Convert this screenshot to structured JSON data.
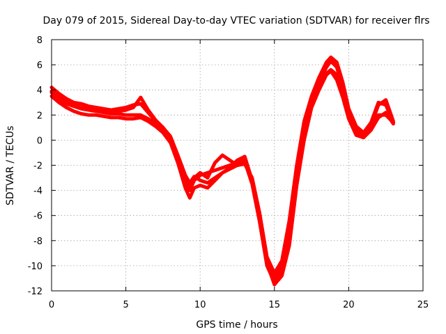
{
  "chart_data": {
    "type": "line",
    "title": "Day 079 of 2015, Sidereal Day-to-day VTEC variation (SDTVAR) for receiver flrs",
    "xlabel": "GPS time / hours",
    "ylabel": "SDTVAR / TECUs",
    "xlim": [
      0,
      25
    ],
    "ylim": [
      -12,
      8
    ],
    "xticks": [
      0,
      5,
      10,
      15,
      20,
      25
    ],
    "yticks": [
      -12,
      -10,
      -8,
      -6,
      -4,
      -2,
      0,
      2,
      4,
      6,
      8
    ],
    "grid": true,
    "legend": "none",
    "color": "#ff0000",
    "series": [
      {
        "x": [
          0,
          0.5,
          1,
          1.5,
          2,
          2.5,
          3,
          3.5,
          4,
          4.5,
          5,
          5.5,
          6,
          6.5,
          7,
          7.5,
          8,
          8.5,
          9,
          9.3,
          9.6,
          10,
          10.5,
          11,
          11.5,
          12,
          12.5,
          13,
          13.5,
          14,
          14.5,
          15,
          15.5,
          16,
          16.5,
          17,
          17.5,
          18,
          18.5,
          18.8,
          19.2,
          19.6,
          20,
          20.5,
          21,
          21.5,
          22,
          22.5,
          23
        ],
        "y": [
          3.8,
          3.3,
          2.9,
          2.7,
          2.5,
          2.4,
          2.3,
          2.2,
          2.1,
          2.1,
          2.0,
          2.0,
          2.0,
          1.7,
          1.3,
          0.8,
          0.0,
          -1.5,
          -3.5,
          -4.0,
          -3.2,
          -2.8,
          -2.6,
          -2.4,
          -2.2,
          -2.0,
          -1.8,
          -1.7,
          -3.5,
          -6.5,
          -10.0,
          -11.3,
          -10.5,
          -7.5,
          -3.0,
          0.5,
          3.0,
          4.3,
          5.3,
          5.6,
          5.2,
          3.8,
          2.0,
          0.6,
          0.3,
          0.9,
          2.0,
          2.0,
          1.4
        ]
      },
      {
        "x": [
          0,
          0.5,
          1,
          1.5,
          2,
          2.5,
          3,
          3.5,
          4,
          4.5,
          5,
          5.5,
          6,
          6.5,
          7,
          7.5,
          8,
          8.5,
          9,
          9.3,
          9.6,
          10,
          10.5,
          11,
          11.5,
          12,
          12.5,
          13,
          13.5,
          14,
          14.5,
          15,
          15.5,
          16,
          16.5,
          17,
          17.5,
          18,
          18.5,
          18.8,
          19.2,
          19.6,
          20,
          20.5,
          21,
          21.5,
          22,
          22.5,
          23
        ],
        "y": [
          4.2,
          3.7,
          3.3,
          3.0,
          2.9,
          2.7,
          2.6,
          2.5,
          2.4,
          2.5,
          2.6,
          2.8,
          2.9,
          2.2,
          1.5,
          1.0,
          0.3,
          -1.2,
          -2.8,
          -3.4,
          -2.9,
          -3.2,
          -3.4,
          -3.0,
          -2.6,
          -2.3,
          -2.0,
          -1.9,
          -3.0,
          -5.8,
          -9.3,
          -10.6,
          -9.6,
          -6.4,
          -2.0,
          1.5,
          3.5,
          5.0,
          6.2,
          6.6,
          6.2,
          4.6,
          2.5,
          1.1,
          0.6,
          1.4,
          3.0,
          2.8,
          1.4
        ]
      },
      {
        "x": [
          0,
          0.5,
          1,
          1.5,
          2,
          2.5,
          3,
          3.5,
          4,
          4.5,
          5,
          5.5,
          6,
          6.5,
          7,
          7.5,
          8,
          8.5,
          9,
          9.3,
          9.6,
          10,
          10.5,
          11,
          11.5,
          12,
          12.5,
          13,
          13.5,
          14,
          14.5,
          15,
          15.5,
          16,
          16.5,
          17,
          17.5,
          18,
          18.5,
          18.8,
          19.2,
          19.6,
          20,
          20.5,
          21,
          21.5,
          22,
          22.5,
          23
        ],
        "y": [
          3.5,
          3.0,
          2.6,
          2.3,
          2.1,
          2.0,
          2.0,
          1.9,
          1.8,
          1.8,
          1.7,
          1.7,
          1.8,
          1.5,
          1.1,
          0.6,
          -0.2,
          -1.8,
          -3.8,
          -4.6,
          -3.8,
          -3.6,
          -3.8,
          -3.2,
          -2.6,
          -2.2,
          -1.6,
          -1.3,
          -3.2,
          -6.2,
          -9.8,
          -11.5,
          -10.8,
          -8.4,
          -3.6,
          0.0,
          2.6,
          4.0,
          5.2,
          5.5,
          4.8,
          3.4,
          1.7,
          0.4,
          0.2,
          0.8,
          1.8,
          2.2,
          1.3
        ]
      },
      {
        "x": [
          0,
          0.5,
          1,
          1.5,
          2,
          2.5,
          3,
          3.5,
          4,
          4.5,
          5,
          5.5,
          6,
          6.5,
          7,
          7.5,
          8,
          8.5,
          9,
          9.3,
          9.6,
          10,
          10.5,
          11,
          11.5,
          12,
          12.5,
          13,
          13.5,
          14,
          14.5,
          15,
          15.5,
          16,
          16.5,
          17,
          17.5,
          18,
          18.5,
          18.8,
          19.2,
          19.6,
          20,
          20.5,
          21,
          21.5,
          22,
          22.5,
          23
        ],
        "y": [
          3.9,
          3.5,
          3.1,
          2.8,
          2.6,
          2.5,
          2.4,
          2.3,
          2.3,
          2.3,
          2.4,
          2.6,
          3.4,
          2.4,
          1.6,
          1.0,
          0.1,
          -1.4,
          -3.2,
          -3.8,
          -3.0,
          -2.6,
          -3.0,
          -1.8,
          -1.2,
          -1.6,
          -2.0,
          -1.5,
          -3.4,
          -6.0,
          -9.6,
          -10.9,
          -10.0,
          -7.0,
          -2.6,
          1.0,
          3.2,
          4.6,
          5.8,
          6.3,
          5.8,
          4.2,
          2.2,
          0.9,
          0.5,
          1.2,
          2.8,
          3.2,
          1.5
        ]
      }
    ]
  }
}
